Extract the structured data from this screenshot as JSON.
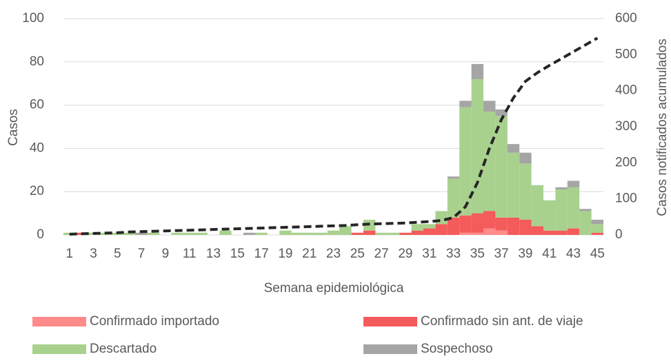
{
  "chart_data": {
    "type": "bar",
    "stacked": true,
    "x_label": "Semana epidemiológica",
    "y_label": "Casos",
    "y2_label": "Casos notificados acumulados",
    "categories": [
      "1",
      null,
      "3",
      null,
      "5",
      null,
      "7",
      null,
      "9",
      null,
      "11",
      null,
      "13",
      null,
      "15",
      null,
      "17",
      null,
      "19",
      null,
      "21",
      null,
      "23",
      null,
      "25",
      null,
      "27",
      null,
      "29",
      null,
      "31",
      null,
      "33",
      null,
      "35",
      null,
      "37",
      null,
      "39",
      null,
      "41",
      null,
      "43",
      null,
      "45"
    ],
    "series": [
      {
        "name": "Confirmado importado",
        "color": "#ff8b8b",
        "values": [
          0,
          0,
          0,
          0,
          0,
          0,
          0,
          0,
          0,
          0,
          0,
          0,
          0,
          0,
          0,
          0,
          0,
          0,
          0,
          0,
          0,
          0,
          0,
          0,
          0,
          0,
          0,
          0,
          0,
          0,
          0,
          0,
          0,
          1,
          1,
          3,
          2,
          0,
          0,
          0,
          0,
          0,
          0,
          0,
          0
        ]
      },
      {
        "name": "Confirmado sin ant. de viaje",
        "color": "#f45b5b",
        "values": [
          0,
          1,
          0,
          0,
          0,
          0,
          0,
          0,
          0,
          0,
          0,
          0,
          0,
          0,
          0,
          0,
          0,
          0,
          0,
          0,
          0,
          0,
          0,
          0,
          1,
          2,
          0,
          0,
          1,
          2,
          3,
          5,
          8,
          8,
          9,
          8,
          6,
          8,
          7,
          4,
          2,
          2,
          3,
          0,
          1
        ]
      },
      {
        "name": "Descartado",
        "color": "#a9d18e",
        "values": [
          1,
          0,
          1,
          1,
          1,
          1,
          0,
          1,
          0,
          1,
          1,
          1,
          0,
          2,
          0,
          0,
          1,
          0,
          2,
          1,
          1,
          1,
          2,
          4,
          0,
          5,
          1,
          1,
          0,
          3,
          2,
          6,
          18,
          50,
          62,
          46,
          47,
          30,
          26,
          19,
          14,
          19,
          19,
          11,
          4
        ]
      },
      {
        "name": "Sospechoso",
        "color": "#a5a5a5",
        "values": [
          0,
          0,
          0,
          0,
          0,
          0,
          1,
          0,
          0,
          0,
          0,
          0,
          0,
          0,
          0,
          1,
          0,
          0,
          0,
          0,
          0,
          0,
          0,
          0,
          0,
          0,
          0,
          0,
          0,
          0,
          0,
          0,
          1,
          3,
          7,
          5,
          3,
          4,
          5,
          0,
          0,
          1,
          3,
          1,
          2
        ]
      },
      {
        "type": "line",
        "axis": "y2",
        "color": "#262626",
        "dashed": true,
        "values": [
          2,
          3,
          4,
          5,
          6,
          8,
          9,
          10,
          11,
          12,
          13,
          14,
          15,
          16,
          17,
          18,
          19,
          20,
          21,
          22,
          23,
          24,
          25,
          26,
          28,
          30,
          31,
          32,
          33,
          35,
          37,
          40,
          48,
          78,
          145,
          240,
          320,
          380,
          426,
          450,
          470,
          489,
          508,
          527,
          546
        ]
      }
    ],
    "ylim": [
      0,
      100
    ],
    "yticks": [
      0,
      20,
      40,
      60,
      80,
      100
    ],
    "y2lim": [
      0,
      600
    ],
    "y2ticks": [
      0,
      100,
      200,
      300,
      400,
      500,
      600
    ],
    "grid": true,
    "legend": "bottom"
  }
}
